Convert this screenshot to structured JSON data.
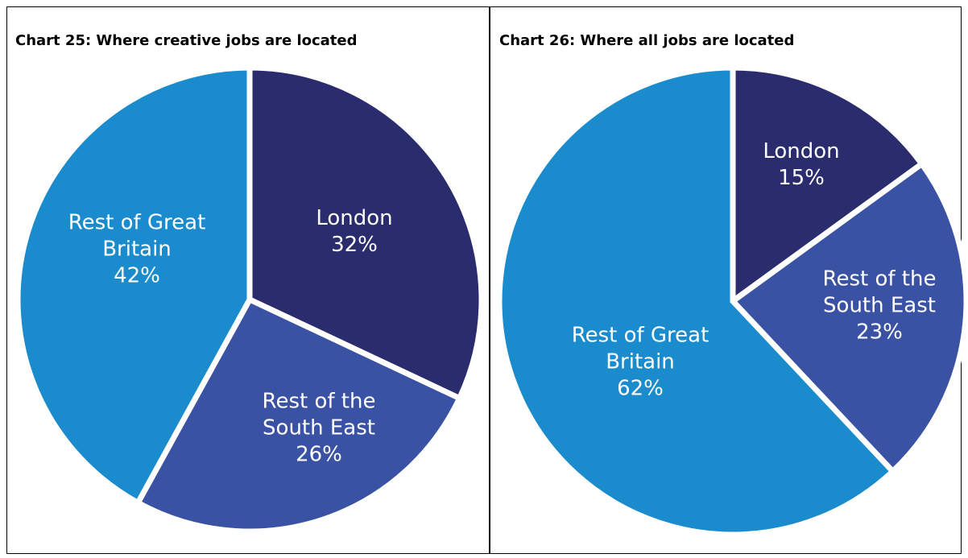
{
  "chart_data": [
    {
      "type": "pie",
      "title": "Chart 25: Where creative jobs are located",
      "categories": [
        "London",
        "Rest of the South East",
        "Rest of Great Britain"
      ],
      "values": [
        32,
        26,
        42
      ],
      "value_labels": [
        "32%",
        "26%",
        "42%"
      ],
      "colors": [
        "#2a2c6e",
        "#3a52a3",
        "#1a8bcd"
      ]
    },
    {
      "type": "pie",
      "title": "Chart 26: Where all jobs are located",
      "categories": [
        "London",
        "Rest of the South East",
        "Rest of Great Britain"
      ],
      "values": [
        15,
        23,
        62
      ],
      "value_labels": [
        "15%",
        "23%",
        "62%"
      ],
      "colors": [
        "#2a2c6e",
        "#3a52a3",
        "#1a8bcd"
      ]
    }
  ]
}
